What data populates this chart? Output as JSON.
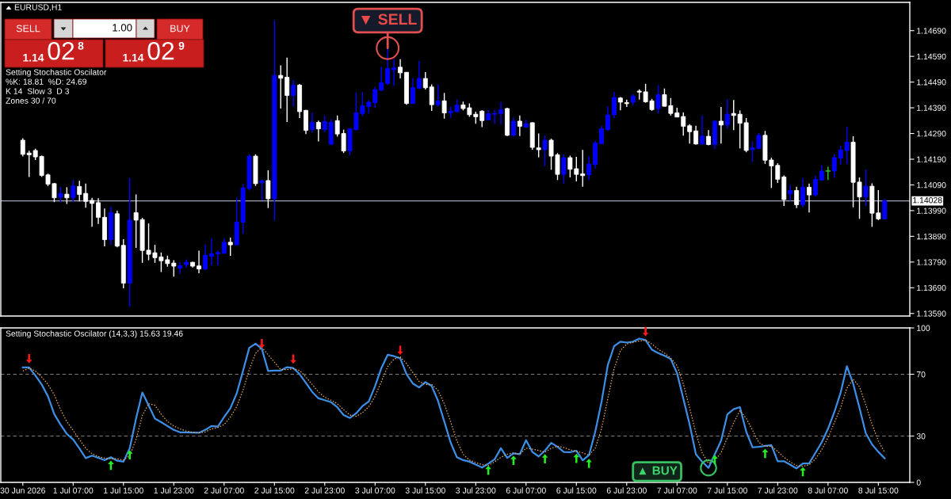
{
  "chart_data": [
    {
      "type": "candlestick",
      "title": "EURUSD,H1",
      "categories": [
        "30 Jun 2026",
        null,
        null,
        null,
        null,
        null,
        null,
        null,
        "1 Jul 07:00",
        null,
        null,
        null,
        null,
        null,
        null,
        null,
        "1 Jul 15:00",
        null,
        null,
        null,
        null,
        null,
        null,
        null,
        "1 Jul 23:00",
        null,
        null,
        null,
        null,
        null,
        null,
        null,
        "2 Jul 07:00",
        null,
        null,
        null,
        null,
        null,
        null,
        null,
        "2 Jul 15:00",
        null,
        null,
        null,
        null,
        null,
        null,
        null,
        "2 Jul 23:00",
        null,
        null,
        null,
        null,
        null,
        null,
        null,
        "3 Jul 07:00",
        null,
        null,
        null,
        null,
        null,
        null,
        null,
        "3 Jul 15:00",
        null,
        null,
        null,
        null,
        null,
        null,
        null,
        "3 Jul 23:00",
        null,
        null,
        null,
        null,
        null,
        null,
        null,
        "6 Jul 07:00",
        null,
        null,
        null,
        null,
        null,
        null,
        null,
        "6 Jul 15:00",
        null,
        null,
        null,
        null,
        null,
        null,
        null,
        "6 Jul 23:00",
        null,
        null,
        null,
        null,
        null,
        null,
        null,
        "7 Jul 07:00",
        null,
        null,
        null,
        null,
        null,
        null,
        null,
        "7 Jul 15:00",
        null,
        null,
        null,
        null,
        null,
        null,
        null,
        "7 Jul 23:00",
        null,
        null,
        null,
        null,
        null,
        null,
        null,
        "8 Jul 07:00",
        null,
        null,
        null,
        null,
        null,
        null,
        null,
        "8 Jul 15:00",
        null
      ],
      "ohlc": [
        [
          1.14264,
          1.14272,
          1.14201,
          1.14209
        ],
        [
          1.14214,
          1.14223,
          1.14121,
          1.14207
        ],
        [
          1.14224,
          1.14231,
          1.14187,
          1.14199
        ],
        [
          1.14201,
          1.14204,
          1.14121,
          1.14127
        ],
        [
          1.14129,
          1.14134,
          1.14085,
          1.14093
        ],
        [
          1.14095,
          1.14098,
          1.14023,
          1.1404
        ],
        [
          1.14042,
          1.14082,
          1.14023,
          1.14057
        ],
        [
          1.14054,
          1.14081,
          1.14016,
          1.1404
        ],
        [
          1.1404,
          1.14109,
          1.14023,
          1.14086
        ],
        [
          1.14084,
          1.14106,
          1.14026,
          1.14053
        ],
        [
          1.14057,
          1.14095,
          1.14001,
          1.14026
        ],
        [
          1.1403,
          1.1404,
          1.13927,
          1.14018
        ],
        [
          1.14021,
          1.14038,
          1.13938,
          1.13964
        ],
        [
          1.13964,
          1.13998,
          1.13851,
          1.13877
        ],
        [
          1.13877,
          1.14005,
          1.13857,
          1.13982
        ],
        [
          1.13978,
          1.1399,
          1.13847,
          1.13852
        ],
        [
          1.13855,
          1.13879,
          1.13688,
          1.13708
        ],
        [
          1.13708,
          1.14117,
          1.13616,
          1.13953
        ],
        [
          1.13982,
          1.14053,
          1.13845,
          1.13953
        ],
        [
          1.13955,
          1.13962,
          1.13787,
          1.13835
        ],
        [
          1.13836,
          1.1394,
          1.13797,
          1.1382
        ],
        [
          1.13826,
          1.13857,
          1.13787,
          1.13807
        ],
        [
          1.1381,
          1.13827,
          1.13751,
          1.13795
        ],
        [
          1.13799,
          1.13815,
          1.13772,
          1.13784
        ],
        [
          1.13786,
          1.13797,
          1.13733,
          1.13774
        ],
        [
          1.13766,
          1.13789,
          1.13744,
          1.13776
        ],
        [
          1.1378,
          1.138,
          1.13769,
          1.13789
        ],
        [
          1.13789,
          1.13791,
          1.13769,
          1.13774
        ],
        [
          1.13775,
          1.13834,
          1.13746,
          1.13763
        ],
        [
          1.13763,
          1.13859,
          1.13759,
          1.13816
        ],
        [
          1.13812,
          1.13882,
          1.13777,
          1.13822
        ],
        [
          1.13822,
          1.13835,
          1.13777,
          1.13827
        ],
        [
          1.13824,
          1.13882,
          1.13822,
          1.13867
        ],
        [
          1.13867,
          1.13885,
          1.13814,
          1.13857
        ],
        [
          1.13857,
          1.14041,
          1.13855,
          1.13945
        ],
        [
          1.13945,
          1.14093,
          1.139,
          1.14078
        ],
        [
          1.14076,
          1.14209,
          1.14068,
          1.14202
        ],
        [
          1.14202,
          1.14209,
          1.14086,
          1.14095
        ],
        [
          1.14098,
          1.14111,
          1.1403,
          1.14106
        ],
        [
          1.14107,
          1.14147,
          1.14,
          1.14036
        ],
        [
          1.14036,
          1.1473,
          1.13953,
          1.14515
        ],
        [
          1.14516,
          1.14555,
          1.14387,
          1.14505
        ],
        [
          1.14509,
          1.14585,
          1.14335,
          1.14438
        ],
        [
          1.14438,
          1.14498,
          1.14396,
          1.14478
        ],
        [
          1.14478,
          1.14483,
          1.1435,
          1.14375
        ],
        [
          1.1438,
          1.14382,
          1.14288,
          1.14302
        ],
        [
          1.14305,
          1.1437,
          1.14295,
          1.14333
        ],
        [
          1.14333,
          1.1434,
          1.14259,
          1.14308
        ],
        [
          1.14305,
          1.1436,
          1.14295,
          1.14337
        ],
        [
          1.14248,
          1.14345,
          1.14246,
          1.14333
        ],
        [
          1.1434,
          1.1436,
          1.14278,
          1.14288
        ],
        [
          1.1429,
          1.14305,
          1.14214,
          1.14222
        ],
        [
          1.14222,
          1.1431,
          1.14204,
          1.14308
        ],
        [
          1.14305,
          1.14449,
          1.14302,
          1.1437
        ],
        [
          1.14368,
          1.14451,
          1.14358,
          1.14398
        ],
        [
          1.14395,
          1.1442,
          1.14368,
          1.14412
        ],
        [
          1.1441,
          1.14471,
          1.1439,
          1.14461
        ],
        [
          1.14459,
          1.14549,
          1.14455,
          1.14488
        ],
        [
          1.14485,
          1.14622,
          1.14479,
          1.14543
        ],
        [
          1.14538,
          1.14579,
          1.14476,
          1.14545
        ],
        [
          1.14548,
          1.14579,
          1.14504,
          1.14526
        ],
        [
          1.14528,
          1.14529,
          1.14402,
          1.14407
        ],
        [
          1.14407,
          1.14505,
          1.14405,
          1.14468
        ],
        [
          1.14466,
          1.14573,
          1.14463,
          1.14504
        ],
        [
          1.14504,
          1.14529,
          1.14461,
          1.14468
        ],
        [
          1.14471,
          1.14481,
          1.14378,
          1.14402
        ],
        [
          1.14402,
          1.14481,
          1.14395,
          1.14417
        ],
        [
          1.14417,
          1.14448,
          1.14348,
          1.1437
        ],
        [
          1.1437,
          1.14395,
          1.1435,
          1.14377
        ],
        [
          1.14375,
          1.14423,
          1.14372,
          1.144
        ],
        [
          1.14401,
          1.14414,
          1.1438,
          1.14387
        ],
        [
          1.1439,
          1.14407,
          1.14355,
          1.14363
        ],
        [
          1.14365,
          1.14375,
          1.14328,
          1.14355
        ],
        [
          1.14377,
          1.1438,
          1.14315,
          1.1434
        ],
        [
          1.14343,
          1.14382,
          1.1434,
          1.14367
        ],
        [
          1.14365,
          1.14382,
          1.14328,
          1.14368
        ],
        [
          1.14367,
          1.14412,
          1.14325,
          1.14382
        ],
        [
          1.14387,
          1.1439,
          1.1428,
          1.14283
        ],
        [
          1.14283,
          1.14352,
          1.14278,
          1.14338
        ],
        [
          1.14338,
          1.1436,
          1.1428,
          1.14318
        ],
        [
          1.14315,
          1.14343,
          1.14313,
          1.14328
        ],
        [
          1.14332,
          1.14333,
          1.14227,
          1.14236
        ],
        [
          1.14234,
          1.1429,
          1.14197,
          1.14227
        ],
        [
          1.14227,
          1.14283,
          1.14164,
          1.14264
        ],
        [
          1.14264,
          1.1427,
          1.14149,
          1.14202
        ],
        [
          1.14207,
          1.14214,
          1.14109,
          1.14131
        ],
        [
          1.14131,
          1.14209,
          1.14095,
          1.14196
        ],
        [
          1.14196,
          1.14204,
          1.14119,
          1.14151
        ],
        [
          1.14153,
          1.14199,
          1.14104,
          1.14131
        ],
        [
          1.14133,
          1.14226,
          1.14083,
          1.14126
        ],
        [
          1.14129,
          1.14201,
          1.14109,
          1.14171
        ],
        [
          1.14169,
          1.14262,
          1.14154,
          1.14253
        ],
        [
          1.14251,
          1.1432,
          1.14249,
          1.14308
        ],
        [
          1.14305,
          1.14395,
          1.143,
          1.14362
        ],
        [
          1.14363,
          1.14452,
          1.1435,
          1.1443
        ],
        [
          1.14428,
          1.14432,
          1.1438,
          1.14412
        ],
        [
          1.1441,
          1.14422,
          1.14393,
          1.14406
        ],
        [
          1.14412,
          1.14443,
          1.144,
          1.14435
        ],
        [
          1.14455,
          1.14462,
          1.14422,
          1.14451
        ],
        [
          1.14452,
          1.14483,
          1.1441,
          1.14413
        ],
        [
          1.14417,
          1.14425,
          1.14378,
          1.14383
        ],
        [
          1.14387,
          1.14478,
          1.14368,
          1.14441
        ],
        [
          1.14441,
          1.14465,
          1.14395,
          1.14396
        ],
        [
          1.14398,
          1.14428,
          1.1436,
          1.14368
        ],
        [
          1.1437,
          1.1439,
          1.14353,
          1.14354
        ],
        [
          1.14356,
          1.14372,
          1.14282,
          1.14318
        ],
        [
          1.1432,
          1.14326,
          1.14251,
          1.14297
        ],
        [
          1.143,
          1.1432,
          1.14247,
          1.14249
        ],
        [
          1.14249,
          1.1436,
          1.14247,
          1.1428
        ],
        [
          1.14279,
          1.14303,
          1.14244,
          1.14247
        ],
        [
          1.14247,
          1.1434,
          1.14231,
          1.14338
        ],
        [
          1.14338,
          1.14393,
          1.14251,
          1.14323
        ],
        [
          1.14323,
          1.14423,
          1.14308,
          1.14365
        ],
        [
          1.14368,
          1.1442,
          1.14303,
          1.1436
        ],
        [
          1.14365,
          1.1438,
          1.14232,
          1.1433
        ],
        [
          1.14332,
          1.1435,
          1.14217,
          1.14224
        ],
        [
          1.14227,
          1.14259,
          1.14179,
          1.14234
        ],
        [
          1.14232,
          1.14292,
          1.14229,
          1.14283
        ],
        [
          1.14283,
          1.143,
          1.14172,
          1.14186
        ],
        [
          1.14187,
          1.14196,
          1.14078,
          1.14164
        ],
        [
          1.14166,
          1.14174,
          1.14098,
          1.14112
        ],
        [
          1.14121,
          1.14127,
          1.14008,
          1.14033
        ],
        [
          1.14055,
          1.1409,
          1.14028,
          1.14068
        ],
        [
          1.14068,
          1.14083,
          1.14,
          1.14013
        ],
        [
          1.14013,
          1.14117,
          1.14003,
          1.14081
        ],
        [
          1.14081,
          1.14095,
          1.13983,
          1.14051
        ],
        [
          1.14051,
          1.14126,
          1.14046,
          1.14111
        ],
        [
          1.14109,
          1.14166,
          1.14107,
          1.14144
        ],
        [
          1.14144,
          1.14161,
          1.14109,
          1.14144
        ],
        [
          1.14144,
          1.14209,
          1.14119,
          1.14196
        ],
        [
          1.14194,
          1.14241,
          1.14169,
          1.14226
        ],
        [
          1.14224,
          1.14316,
          1.14171,
          1.14256
        ],
        [
          1.14256,
          1.14279,
          1.14003,
          1.141
        ],
        [
          1.14101,
          1.14119,
          1.13958,
          1.14043
        ],
        [
          1.14043,
          1.14149,
          1.14008,
          1.14085
        ],
        [
          1.14085,
          1.14096,
          1.13927,
          1.1398
        ],
        [
          1.13981,
          1.1407,
          1.13953,
          1.13958
        ],
        [
          1.13958,
          1.14036,
          1.13956,
          1.14028
        ]
      ],
      "colors": [
        "#ffffff",
        "#ffffff",
        "#ffffff",
        "#ffffff",
        "#ffffff",
        "#ffffff",
        "#0000ff",
        "#ffffff",
        "#0000ff",
        "#ffffff",
        "#ffffff",
        "#ffffff",
        "#ffffff",
        "#ffffff",
        "#0000ff",
        "#ffffff",
        "#ffffff",
        "#0000ff",
        "#ffffff",
        "#ffffff",
        "#ffffff",
        "#ffffff",
        "#ffffff",
        "#ffffff",
        "#ffffff",
        "#0000ff",
        "#0000ff",
        "#ffffff",
        "#ffffff",
        "#0000ff",
        "#0000ff",
        "#0000ff",
        "#0000ff",
        "#ffffff",
        "#0000ff",
        "#0000ff",
        "#0000ff",
        "#ffffff",
        "#0000ff",
        "#ffffff",
        "#0000ff",
        "#ffffff",
        "#ffffff",
        "#0000ff",
        "#ffffff",
        "#ffffff",
        "#0000ff",
        "#ffffff",
        "#0000ff",
        "#0000ff",
        "#ffffff",
        "#ffffff",
        "#0000ff",
        "#0000ff",
        "#0000ff",
        "#0000ff",
        "#0000ff",
        "#0000ff",
        "#0000ff",
        "#0000ff",
        "#ffffff",
        "#ffffff",
        "#0000ff",
        "#0000ff",
        "#ffffff",
        "#ffffff",
        "#0000ff",
        "#ffffff",
        "#0000ff",
        "#0000ff",
        "#ffffff",
        "#ffffff",
        "#ffffff",
        "#ffffff",
        "#0000ff",
        "#0000ff",
        "#0000ff",
        "#ffffff",
        "#0000ff",
        "#ffffff",
        "#0000ff",
        "#ffffff",
        "#ffffff",
        "#0000ff",
        "#ffffff",
        "#ffffff",
        "#0000ff",
        "#ffffff",
        "#ffffff",
        "#ffffff",
        "#0000ff",
        "#0000ff",
        "#0000ff",
        "#0000ff",
        "#0000ff",
        "#ffffff",
        "#ffffff",
        "#0000ff",
        "#ffffff",
        "#ffffff",
        "#ffffff",
        "#0000ff",
        "#ffffff",
        "#ffffff",
        "#ffffff",
        "#ffffff",
        "#ffffff",
        "#ffffff",
        "#0000ff",
        "#ffffff",
        "#0000ff",
        "#ffffff",
        "#0000ff",
        "#ffffff",
        "#ffffff",
        "#ffffff",
        "#0000ff",
        "#0000ff",
        "#ffffff",
        "#ffffff",
        "#ffffff",
        "#ffffff",
        "#0000ff",
        "#ffffff",
        "#0000ff",
        "#ffffff",
        "#0000ff",
        "#0000ff",
        "#32cd32",
        "#0000ff",
        "#0000ff",
        "#0000ff",
        "#ffffff",
        "#ffffff",
        "#0000ff",
        "#ffffff",
        "#ffffff",
        "#0000ff"
      ],
      "ylim": [
        1.1358,
        1.148
      ],
      "yticks": [
        {
          "value": 1.1469,
          "label": "1.14690"
        },
        {
          "value": 1.1459,
          "label": "1.14590"
        },
        {
          "value": 1.1449,
          "label": "1.14490"
        },
        {
          "value": 1.1439,
          "label": "1.14390"
        },
        {
          "value": 1.1429,
          "label": "1.14290"
        },
        {
          "value": 1.1419,
          "label": "1.14190"
        },
        {
          "value": 1.1409,
          "label": "1.14090"
        },
        {
          "value": 1.1399,
          "label": "1.13990"
        },
        {
          "value": 1.1389,
          "label": "1.13890"
        },
        {
          "value": 1.1379,
          "label": "1.13790"
        },
        {
          "value": 1.1369,
          "label": "1.13690"
        },
        {
          "value": 1.1359,
          "label": "1.13590"
        }
      ],
      "tick_labels": "y",
      "ref_lines": [
        {
          "axis": "y",
          "value": 1.14028,
          "label": "1.14028",
          "color": "#a0a4b8"
        }
      ],
      "annotations": [
        "SELL",
        "1.00",
        "BUY",
        "1.14",
        "02",
        "8",
        "1.14",
        "02",
        "9",
        "Setting Stochastic Oscilator",
        "%K: 18.81  %D: 24.69",
        "K 14  Slow 3  D 3",
        "Zones 30 / 70",
        {
          "text": "▼ SELL",
          "y": 1.14622
        }
      ]
    },
    {
      "type": "line",
      "title": "Setting Stochastic Oscilator (14,3,3) 15.63 19.46",
      "categories": [
        "30 Jun 2026",
        null,
        null,
        null,
        null,
        null,
        null,
        null,
        "1 Jul 07:00",
        null,
        null,
        null,
        null,
        null,
        null,
        null,
        "1 Jul 15:00",
        null,
        null,
        null,
        null,
        null,
        null,
        null,
        "1 Jul 23:00",
        null,
        null,
        null,
        null,
        null,
        null,
        null,
        "2 Jul 07:00",
        null,
        null,
        null,
        null,
        null,
        null,
        null,
        "2 Jul 15:00",
        null,
        null,
        null,
        null,
        null,
        null,
        null,
        "2 Jul 23:00",
        null,
        null,
        null,
        null,
        null,
        null,
        null,
        "3 Jul 07:00",
        null,
        null,
        null,
        null,
        null,
        null,
        null,
        "3 Jul 15:00",
        null,
        null,
        null,
        null,
        null,
        null,
        null,
        "3 Jul 23:00",
        null,
        null,
        null,
        null,
        null,
        null,
        null,
        "6 Jul 07:00",
        null,
        null,
        null,
        null,
        null,
        null,
        null,
        "6 Jul 15:00",
        null,
        null,
        null,
        null,
        null,
        null,
        null,
        "6 Jul 23:00",
        null,
        null,
        null,
        null,
        null,
        null,
        null,
        "7 Jul 07:00",
        null,
        null,
        null,
        null,
        null,
        null,
        null,
        "7 Jul 15:00",
        null,
        null,
        null,
        null,
        null,
        null,
        null,
        "7 Jul 23:00",
        null,
        null,
        null,
        null,
        null,
        null,
        null,
        "8 Jul 07:00",
        null,
        null,
        null,
        null,
        null,
        null,
        null,
        "8 Jul 15:00",
        null
      ],
      "series": [
        {
          "color": "#3d8fe6",
          "values": [
            74.4,
            74.4,
            69.2,
            63.4,
            55.7,
            44.2,
            37.4,
            31.3,
            27.8,
            22.0,
            15.7,
            17.3,
            15.9,
            14.4,
            16.3,
            14.0,
            13.4,
            22.0,
            41.3,
            58.2,
            49.9,
            41.3,
            39.0,
            36.5,
            34.0,
            32.4,
            32.4,
            32.3,
            32.1,
            34.0,
            36.5,
            36.1,
            42.3,
            48.0,
            57.6,
            72.1,
            87.1,
            89.8,
            86.5,
            72.1,
            72.4,
            72.4,
            74.6,
            74.0,
            70.1,
            64.4,
            58.6,
            54.4,
            53.2,
            51.9,
            48.6,
            43.6,
            41.7,
            44.8,
            49.4,
            52.4,
            62.4,
            74.0,
            82.6,
            81.7,
            80.3,
            70.1,
            64.0,
            61.5,
            64.9,
            62.4,
            52.8,
            39.4,
            25.9,
            16.3,
            14.4,
            13.4,
            11.5,
            9.6,
            12.1,
            14.9,
            22.1,
            15.8,
            18.8,
            18.2,
            27.3,
            19.7,
            16.8,
            20.5,
            25.6,
            23.0,
            19.7,
            19.5,
            20.5,
            14.3,
            17.6,
            32.8,
            52.2,
            76.0,
            88.2,
            91.1,
            90.5,
            91.1,
            93.1,
            92.1,
            85.9,
            83.7,
            82.0,
            79.8,
            70.7,
            54.2,
            37.6,
            18.2,
            13.3,
            9.4,
            18.2,
            26.9,
            44.0,
            47.4,
            48.7,
            32.8,
            22.7,
            23.0,
            23.6,
            24.0,
            13.7,
            13.7,
            11.4,
            9.0,
            12.3,
            12.3,
            19.1,
            25.9,
            34.7,
            45.4,
            58.0,
            75.2,
            63.9,
            48.3,
            31.8,
            24.6,
            19.7,
            15.6
          ]
        },
        {
          "color": "#e8a85a",
          "line_style": "dotted",
          "values": [
            72.1,
            74.0,
            72.1,
            68.2,
            63.4,
            56.7,
            47.1,
            39.4,
            33.6,
            27.8,
            22.0,
            18.6,
            16.7,
            15.7,
            15.3,
            15.3,
            14.4,
            17.3,
            27.8,
            43.2,
            50.9,
            49.9,
            44.2,
            39.4,
            36.5,
            34.6,
            33.2,
            32.4,
            32.1,
            32.6,
            34.6,
            35.5,
            37.4,
            42.3,
            49.0,
            59.6,
            73.0,
            83.6,
            87.4,
            82.6,
            77.8,
            73.0,
            73.0,
            73.6,
            72.4,
            68.2,
            63.4,
            58.6,
            55.1,
            53.2,
            50.9,
            47.1,
            43.6,
            42.8,
            45.1,
            49.0,
            55.7,
            65.3,
            74.9,
            79.8,
            81.3,
            76.9,
            71.1,
            65.3,
            63.4,
            63.4,
            59.6,
            50.9,
            39.4,
            26.9,
            18.2,
            14.4,
            12.8,
            11.5,
            10.9,
            13.3,
            16.2,
            18.2,
            19.1,
            18.2,
            22.1,
            21.5,
            20.7,
            19.5,
            22.1,
            23.4,
            22.6,
            21.1,
            20.1,
            19.1,
            17.6,
            22.1,
            34.7,
            54.2,
            73.6,
            85.3,
            89.6,
            90.7,
            91.5,
            92.1,
            89.6,
            86.3,
            83.7,
            80.4,
            75.6,
            63.9,
            48.3,
            31.8,
            19.1,
            12.3,
            14.3,
            19.1,
            28.9,
            38.6,
            46.4,
            41.5,
            33.7,
            25.9,
            23.4,
            23.4,
            20.1,
            16.2,
            13.3,
            10.8,
            10.4,
            11.4,
            15.2,
            21.1,
            28.9,
            38.6,
            48.3,
            61.0,
            66.8,
            61.9,
            50.3,
            37.6,
            26.9,
            19.5
          ]
        },
        {
          "type": "scatter",
          "color": "#ff1a1a",
          "values": [
            null,
            80.1,
            null,
            null,
            null,
            null,
            null,
            null,
            null,
            null,
            null,
            null,
            null,
            null,
            null,
            null,
            null,
            null,
            null,
            null,
            null,
            null,
            null,
            null,
            null,
            null,
            null,
            null,
            null,
            null,
            null,
            null,
            null,
            null,
            null,
            null,
            null,
            null,
            89.8,
            null,
            null,
            null,
            null,
            79.8,
            null,
            null,
            null,
            null,
            null,
            null,
            null,
            null,
            null,
            null,
            null,
            null,
            null,
            null,
            null,
            null,
            85.5,
            null,
            null,
            null,
            null,
            null,
            null,
            null,
            null,
            null,
            null,
            null,
            null,
            null,
            null,
            null,
            null,
            null,
            null,
            null,
            null,
            null,
            null,
            null,
            null,
            null,
            null,
            null,
            null,
            null,
            null,
            null,
            null,
            null,
            null,
            null,
            null,
            null,
            null,
            97.6,
            null,
            null,
            null,
            null,
            null,
            null,
            null,
            null,
            null,
            null,
            null,
            null,
            null,
            null,
            null,
            null,
            null,
            null,
            null,
            null,
            null,
            null,
            null,
            null,
            null,
            null,
            null,
            null,
            null,
            null,
            null,
            null,
            null,
            null,
            null,
            null,
            null,
            null
          ]
        },
        {
          "type": "scatter",
          "color": "#22ee22",
          "values": [
            null,
            null,
            null,
            null,
            null,
            null,
            null,
            null,
            null,
            null,
            null,
            null,
            null,
            null,
            11.1,
            null,
            null,
            17.8,
            null,
            null,
            null,
            null,
            null,
            null,
            null,
            null,
            null,
            null,
            null,
            null,
            null,
            null,
            null,
            null,
            null,
            null,
            null,
            null,
            null,
            null,
            null,
            null,
            null,
            null,
            null,
            null,
            null,
            null,
            null,
            null,
            null,
            null,
            null,
            null,
            null,
            null,
            null,
            null,
            null,
            null,
            null,
            null,
            null,
            null,
            null,
            null,
            null,
            null,
            null,
            null,
            null,
            null,
            null,
            null,
            7.8,
            null,
            null,
            null,
            14.3,
            null,
            null,
            null,
            null,
            15.3,
            null,
            null,
            null,
            null,
            15.6,
            null,
            12.3,
            null,
            null,
            null,
            null,
            null,
            null,
            null,
            null,
            null,
            null,
            null,
            null,
            null,
            null,
            null,
            null,
            null,
            null,
            null,
            14.7,
            null,
            null,
            null,
            null,
            null,
            null,
            null,
            18.8,
            null,
            null,
            null,
            null,
            null,
            6.9,
            null,
            null,
            null,
            null,
            null,
            null,
            null,
            null,
            null,
            null,
            null,
            null,
            null
          ]
        }
      ],
      "ylim": [
        0,
        100
      ],
      "yticks": [
        0,
        30,
        70,
        100
      ],
      "ref_lines": [
        {
          "axis": "y",
          "value": 70,
          "color": "#7a7a7a",
          "line_style": "dashed"
        },
        {
          "axis": "y",
          "value": 30,
          "color": "#7a7a7a",
          "line_style": "dashed"
        }
      ],
      "annotations": [
        "▲ BUY"
      ]
    }
  ]
}
